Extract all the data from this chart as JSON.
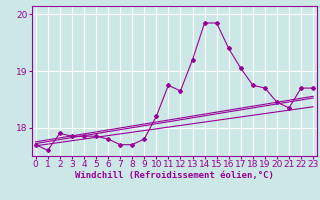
{
  "title": "",
  "xlabel": "Windchill (Refroidissement éolien,°C)",
  "ylabel": "",
  "bg_color": "#cce8e6",
  "grid_color": "#ffffff",
  "line_color": "#990099",
  "x_hours": [
    0,
    1,
    2,
    3,
    4,
    5,
    6,
    7,
    8,
    9,
    10,
    11,
    12,
    13,
    14,
    15,
    16,
    17,
    18,
    19,
    20,
    21,
    22,
    23
  ],
  "y_windchill": [
    17.7,
    17.6,
    17.9,
    17.85,
    17.85,
    17.85,
    17.8,
    17.7,
    17.7,
    17.8,
    18.2,
    18.75,
    18.65,
    19.2,
    19.85,
    19.85,
    19.4,
    19.05,
    18.75,
    18.7,
    18.45,
    18.35,
    18.7,
    18.7
  ],
  "y_linear1": [
    17.68,
    17.71,
    17.74,
    17.77,
    17.8,
    17.83,
    17.86,
    17.89,
    17.92,
    17.95,
    17.98,
    18.01,
    18.04,
    18.07,
    18.1,
    18.13,
    18.16,
    18.19,
    18.22,
    18.25,
    18.28,
    18.31,
    18.34,
    18.37
  ],
  "y_linear2": [
    17.72,
    17.755,
    17.79,
    17.825,
    17.86,
    17.895,
    17.93,
    17.965,
    18.0,
    18.035,
    18.07,
    18.105,
    18.14,
    18.175,
    18.21,
    18.245,
    18.28,
    18.315,
    18.35,
    18.385,
    18.42,
    18.455,
    18.49,
    18.525
  ],
  "y_linear3": [
    17.75,
    17.785,
    17.82,
    17.855,
    17.89,
    17.925,
    17.96,
    17.995,
    18.03,
    18.065,
    18.1,
    18.135,
    18.17,
    18.205,
    18.24,
    18.275,
    18.31,
    18.345,
    18.38,
    18.415,
    18.45,
    18.485,
    18.52,
    18.555
  ],
  "ylim": [
    17.5,
    20.15
  ],
  "yticks": [
    18,
    19,
    20
  ],
  "xticks": [
    0,
    1,
    2,
    3,
    4,
    5,
    6,
    7,
    8,
    9,
    10,
    11,
    12,
    13,
    14,
    15,
    16,
    17,
    18,
    19,
    20,
    21,
    22,
    23
  ],
  "xlabel_fontsize": 6.5,
  "tick_fontsize": 6.5
}
